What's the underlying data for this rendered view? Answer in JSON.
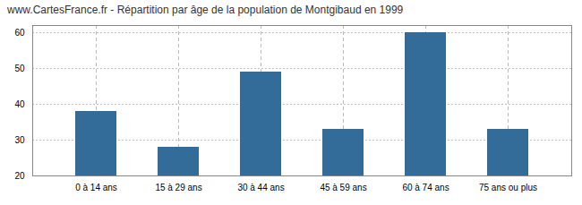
{
  "chart_data": {
    "type": "bar",
    "title": "www.CartesFrance.fr - Répartition par âge de la population de Montgibaud en 1999",
    "categories": [
      "0 à 14 ans",
      "15 à 29 ans",
      "30 à 44 ans",
      "45 à 59 ans",
      "60 à 74 ans",
      "75 ans ou plus"
    ],
    "values": [
      38,
      28,
      49,
      33,
      60,
      33
    ],
    "color": "#336b99",
    "ylim": [
      20,
      62
    ],
    "yticks": [
      20,
      30,
      40,
      50,
      60
    ],
    "grid": true
  }
}
